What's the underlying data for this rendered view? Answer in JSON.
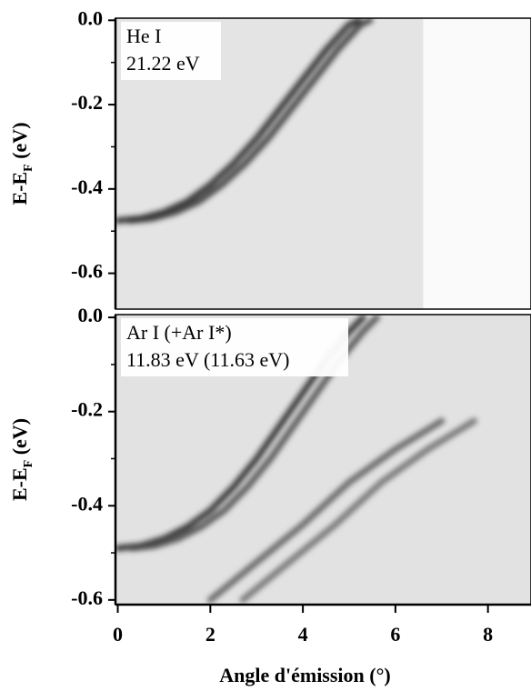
{
  "chart_data": [
    {
      "type": "line",
      "annotations": [
        "He I",
        "21.22 eV"
      ],
      "ylabel": [
        "E-E",
        "F",
        " (eV)"
      ],
      "xlim": [
        -0.05,
        8.93
      ],
      "ylim": [
        -0.685,
        0.005
      ],
      "yticks": [
        {
          "value": 0,
          "label": "0.0"
        },
        -0.2,
        -0.4,
        -0.6
      ],
      "yminor": [
        -0.1,
        -0.3,
        -0.5
      ],
      "map_xlim": [
        -0.05,
        6.6
      ],
      "map_color": "#e4e4e4",
      "series": [
        {
          "color": "#1c1c1c",
          "x": [
            0,
            0.5,
            1,
            1.5,
            2,
            2.5,
            3,
            3.5,
            4,
            4.5,
            5,
            5.2
          ],
          "values": [
            -0.475,
            -0.47,
            -0.455,
            -0.43,
            -0.39,
            -0.34,
            -0.28,
            -0.21,
            -0.14,
            -0.07,
            -0.01,
            0.0
          ]
        },
        {
          "color": "#333333",
          "x": [
            0.25,
            0.75,
            1.25,
            1.75,
            2.25,
            2.75,
            3.25,
            3.75,
            4.25,
            4.75,
            5.25,
            5.45
          ],
          "values": [
            -0.475,
            -0.47,
            -0.455,
            -0.43,
            -0.39,
            -0.34,
            -0.28,
            -0.21,
            -0.14,
            -0.07,
            -0.01,
            0.0
          ]
        }
      ]
    },
    {
      "type": "line",
      "annotations": [
        "Ar I (+Ar I*)",
        "11.83 eV (11.63 eV)"
      ],
      "ylabel": [
        "E-E",
        "F",
        " (eV)"
      ],
      "xlabel": "Angle d'émission (°)",
      "xlim": [
        -0.05,
        8.93
      ],
      "ylim": [
        -0.61,
        0.006
      ],
      "xticks": [
        0,
        2,
        4,
        6,
        8
      ],
      "yticks": [
        {
          "value": 0,
          "label": "0.0"
        },
        -0.2,
        -0.4,
        -0.6
      ],
      "yminor": [
        -0.1,
        -0.3,
        -0.5
      ],
      "map_xlim": [
        -0.05,
        8.93
      ],
      "map_color": "#e2e2e2",
      "series": [
        {
          "color": "#1c1c1c",
          "x": [
            0,
            0.5,
            1,
            1.5,
            2,
            2.5,
            3,
            3.5,
            4,
            4.5,
            5,
            5.3
          ],
          "values": [
            -0.49,
            -0.485,
            -0.47,
            -0.445,
            -0.41,
            -0.36,
            -0.3,
            -0.23,
            -0.16,
            -0.09,
            -0.03,
            0.0
          ]
        },
        {
          "color": "#444444",
          "x": [
            0.3,
            0.8,
            1.3,
            1.8,
            2.3,
            2.8,
            3.3,
            3.8,
            4.3,
            4.8,
            5.3,
            5.6
          ],
          "values": [
            -0.49,
            -0.485,
            -0.47,
            -0.445,
            -0.41,
            -0.36,
            -0.3,
            -0.23,
            -0.16,
            -0.09,
            -0.03,
            0.0
          ]
        },
        {
          "color": "#555555",
          "x": [
            2,
            3,
            4,
            5,
            6,
            6.5,
            7
          ],
          "values": [
            -0.6,
            -0.52,
            -0.44,
            -0.35,
            -0.28,
            -0.25,
            -0.22
          ]
        },
        {
          "color": "#666666",
          "x": [
            2.7,
            3.7,
            4.7,
            5.7,
            6.7,
            7.2,
            7.7
          ],
          "values": [
            -0.6,
            -0.52,
            -0.44,
            -0.35,
            -0.28,
            -0.25,
            -0.22
          ]
        }
      ]
    }
  ]
}
